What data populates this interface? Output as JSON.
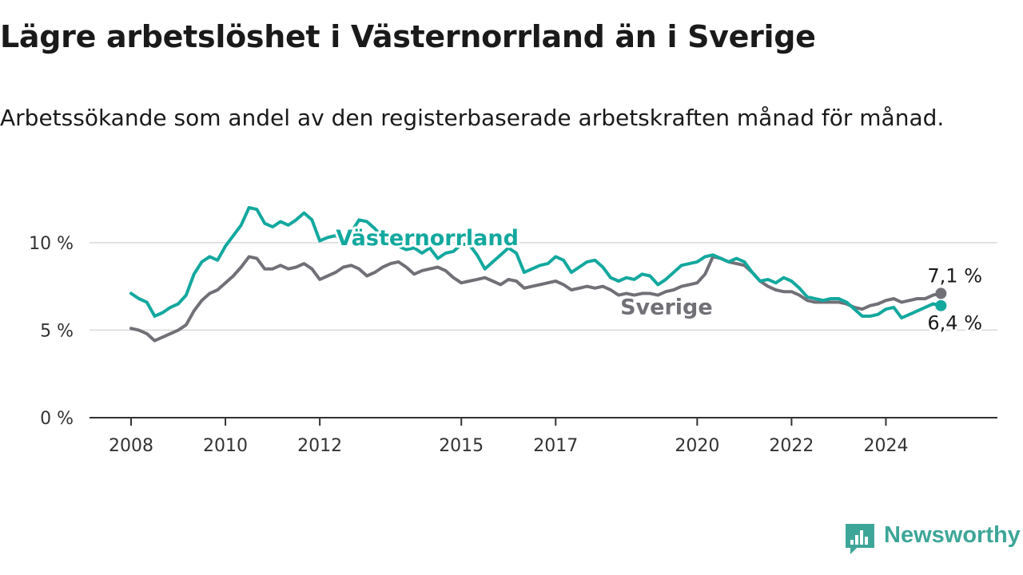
{
  "title": "Lägre arbetslöshet i Västernorrland än i Sverige",
  "subtitle": "Arbetssökande som andel av den registerbaserade arbetskraften månad för månad.",
  "brand": {
    "name": "Newsworthy",
    "icon": "newsworthy-logo-icon",
    "color": "#3ea698"
  },
  "colors": {
    "vasternorrland": "#13a89e",
    "sverige": "#727077",
    "axis": "#333333",
    "grid": "#d9d9d9"
  },
  "chart_data": {
    "type": "line",
    "title": "Lägre arbetslöshet i Västernorrland än i Sverige",
    "subtitle": "Arbetssökande som andel av den registerbaserade arbetskraften månad för månad.",
    "ylim": [
      0,
      12
    ],
    "yticks": [
      0,
      5,
      10
    ],
    "ytick_labels": [
      "0 %",
      "5 %",
      "10 %"
    ],
    "xlim": [
      "2008-01",
      "2025-07"
    ],
    "xticks": [
      "2008-01",
      "2010-01",
      "2012-01",
      "2015-01",
      "2017-01",
      "2020-01",
      "2022-01",
      "2024-01"
    ],
    "xtick_labels": [
      "2008",
      "2010",
      "2012",
      "2015",
      "2017",
      "2020",
      "2022",
      "2024"
    ],
    "grid": true,
    "legend": "direct labels on lines",
    "series": [
      {
        "name": "Västernorrland",
        "label": "Västernorrland",
        "end_label": "6,4 %",
        "points": [
          [
            "2008-01",
            7.1
          ],
          [
            "2008-03",
            6.8
          ],
          [
            "2008-05",
            6.6
          ],
          [
            "2008-07",
            5.8
          ],
          [
            "2008-09",
            6.0
          ],
          [
            "2008-11",
            6.3
          ],
          [
            "2009-01",
            6.5
          ],
          [
            "2009-03",
            7.0
          ],
          [
            "2009-05",
            8.2
          ],
          [
            "2009-07",
            8.9
          ],
          [
            "2009-09",
            9.2
          ],
          [
            "2009-11",
            9.0
          ],
          [
            "2010-01",
            9.8
          ],
          [
            "2010-03",
            10.4
          ],
          [
            "2010-05",
            11.0
          ],
          [
            "2010-07",
            12.0
          ],
          [
            "2010-09",
            11.9
          ],
          [
            "2010-11",
            11.1
          ],
          [
            "2011-01",
            10.9
          ],
          [
            "2011-03",
            11.2
          ],
          [
            "2011-05",
            11.0
          ],
          [
            "2011-07",
            11.3
          ],
          [
            "2011-09",
            11.7
          ],
          [
            "2011-11",
            11.3
          ],
          [
            "2012-01",
            10.1
          ],
          [
            "2012-03",
            10.3
          ],
          [
            "2012-05",
            10.4
          ],
          [
            "2012-07",
            10.1
          ],
          [
            "2012-09",
            10.6
          ],
          [
            "2012-11",
            11.3
          ],
          [
            "2013-01",
            11.2
          ],
          [
            "2013-03",
            10.8
          ],
          [
            "2013-05",
            10.3
          ],
          [
            "2013-07",
            10.0
          ],
          [
            "2013-09",
            9.8
          ],
          [
            "2013-11",
            9.6
          ],
          [
            "2014-01",
            9.7
          ],
          [
            "2014-03",
            9.4
          ],
          [
            "2014-05",
            9.7
          ],
          [
            "2014-07",
            9.1
          ],
          [
            "2014-09",
            9.4
          ],
          [
            "2014-11",
            9.5
          ],
          [
            "2015-01",
            9.9
          ],
          [
            "2015-03",
            9.9
          ],
          [
            "2015-05",
            9.3
          ],
          [
            "2015-07",
            8.5
          ],
          [
            "2015-09",
            8.9
          ],
          [
            "2015-11",
            9.3
          ],
          [
            "2016-01",
            9.7
          ],
          [
            "2016-03",
            9.4
          ],
          [
            "2016-05",
            8.3
          ],
          [
            "2016-07",
            8.5
          ],
          [
            "2016-09",
            8.7
          ],
          [
            "2016-11",
            8.8
          ],
          [
            "2017-01",
            9.2
          ],
          [
            "2017-03",
            9.0
          ],
          [
            "2017-05",
            8.3
          ],
          [
            "2017-07",
            8.6
          ],
          [
            "2017-09",
            8.9
          ],
          [
            "2017-11",
            9.0
          ],
          [
            "2018-01",
            8.6
          ],
          [
            "2018-03",
            8.0
          ],
          [
            "2018-05",
            7.8
          ],
          [
            "2018-07",
            8.0
          ],
          [
            "2018-09",
            7.9
          ],
          [
            "2018-11",
            8.2
          ],
          [
            "2019-01",
            8.1
          ],
          [
            "2019-03",
            7.6
          ],
          [
            "2019-05",
            7.9
          ],
          [
            "2019-07",
            8.3
          ],
          [
            "2019-09",
            8.7
          ],
          [
            "2019-11",
            8.8
          ],
          [
            "2020-01",
            8.9
          ],
          [
            "2020-03",
            9.2
          ],
          [
            "2020-05",
            9.3
          ],
          [
            "2020-07",
            9.1
          ],
          [
            "2020-09",
            8.9
          ],
          [
            "2020-11",
            9.1
          ],
          [
            "2021-01",
            8.9
          ],
          [
            "2021-03",
            8.3
          ],
          [
            "2021-05",
            7.8
          ],
          [
            "2021-07",
            7.9
          ],
          [
            "2021-09",
            7.7
          ],
          [
            "2021-11",
            8.0
          ],
          [
            "2022-01",
            7.8
          ],
          [
            "2022-03",
            7.4
          ],
          [
            "2022-05",
            6.9
          ],
          [
            "2022-07",
            6.8
          ],
          [
            "2022-09",
            6.7
          ],
          [
            "2022-11",
            6.8
          ],
          [
            "2023-01",
            6.8
          ],
          [
            "2023-03",
            6.6
          ],
          [
            "2023-05",
            6.2
          ],
          [
            "2023-07",
            5.8
          ],
          [
            "2023-09",
            5.8
          ],
          [
            "2023-11",
            5.9
          ],
          [
            "2024-01",
            6.2
          ],
          [
            "2024-03",
            6.3
          ],
          [
            "2024-05",
            5.7
          ],
          [
            "2024-07",
            5.9
          ],
          [
            "2024-09",
            6.1
          ],
          [
            "2024-11",
            6.3
          ],
          [
            "2025-01",
            6.5
          ],
          [
            "2025-03",
            6.4
          ]
        ]
      },
      {
        "name": "Sverige",
        "label": "Sverige",
        "end_label": "7,1 %",
        "points": [
          [
            "2008-01",
            5.1
          ],
          [
            "2008-03",
            5.0
          ],
          [
            "2008-05",
            4.8
          ],
          [
            "2008-07",
            4.4
          ],
          [
            "2008-09",
            4.6
          ],
          [
            "2008-11",
            4.8
          ],
          [
            "2009-01",
            5.0
          ],
          [
            "2009-03",
            5.3
          ],
          [
            "2009-05",
            6.1
          ],
          [
            "2009-07",
            6.7
          ],
          [
            "2009-09",
            7.1
          ],
          [
            "2009-11",
            7.3
          ],
          [
            "2010-01",
            7.7
          ],
          [
            "2010-03",
            8.1
          ],
          [
            "2010-05",
            8.6
          ],
          [
            "2010-07",
            9.2
          ],
          [
            "2010-09",
            9.1
          ],
          [
            "2010-11",
            8.5
          ],
          [
            "2011-01",
            8.5
          ],
          [
            "2011-03",
            8.7
          ],
          [
            "2011-05",
            8.5
          ],
          [
            "2011-07",
            8.6
          ],
          [
            "2011-09",
            8.8
          ],
          [
            "2011-11",
            8.5
          ],
          [
            "2012-01",
            7.9
          ],
          [
            "2012-03",
            8.1
          ],
          [
            "2012-05",
            8.3
          ],
          [
            "2012-07",
            8.6
          ],
          [
            "2012-09",
            8.7
          ],
          [
            "2012-11",
            8.5
          ],
          [
            "2013-01",
            8.1
          ],
          [
            "2013-03",
            8.3
          ],
          [
            "2013-05",
            8.6
          ],
          [
            "2013-07",
            8.8
          ],
          [
            "2013-09",
            8.9
          ],
          [
            "2013-11",
            8.6
          ],
          [
            "2014-01",
            8.2
          ],
          [
            "2014-03",
            8.4
          ],
          [
            "2014-05",
            8.5
          ],
          [
            "2014-07",
            8.6
          ],
          [
            "2014-09",
            8.4
          ],
          [
            "2014-11",
            8.0
          ],
          [
            "2015-01",
            7.7
          ],
          [
            "2015-03",
            7.8
          ],
          [
            "2015-05",
            7.9
          ],
          [
            "2015-07",
            8.0
          ],
          [
            "2015-09",
            7.8
          ],
          [
            "2015-11",
            7.6
          ],
          [
            "2016-01",
            7.9
          ],
          [
            "2016-03",
            7.8
          ],
          [
            "2016-05",
            7.4
          ],
          [
            "2016-07",
            7.5
          ],
          [
            "2016-09",
            7.6
          ],
          [
            "2016-11",
            7.7
          ],
          [
            "2017-01",
            7.8
          ],
          [
            "2017-03",
            7.6
          ],
          [
            "2017-05",
            7.3
          ],
          [
            "2017-07",
            7.4
          ],
          [
            "2017-09",
            7.5
          ],
          [
            "2017-11",
            7.4
          ],
          [
            "2018-01",
            7.5
          ],
          [
            "2018-03",
            7.3
          ],
          [
            "2018-05",
            7.0
          ],
          [
            "2018-07",
            7.1
          ],
          [
            "2018-09",
            7.0
          ],
          [
            "2018-11",
            7.1
          ],
          [
            "2019-01",
            7.1
          ],
          [
            "2019-03",
            7.0
          ],
          [
            "2019-05",
            7.2
          ],
          [
            "2019-07",
            7.3
          ],
          [
            "2019-09",
            7.5
          ],
          [
            "2019-11",
            7.6
          ],
          [
            "2020-01",
            7.7
          ],
          [
            "2020-03",
            8.2
          ],
          [
            "2020-05",
            9.2
          ],
          [
            "2020-07",
            9.1
          ],
          [
            "2020-09",
            8.9
          ],
          [
            "2020-11",
            8.8
          ],
          [
            "2021-01",
            8.7
          ],
          [
            "2021-03",
            8.3
          ],
          [
            "2021-05",
            7.8
          ],
          [
            "2021-07",
            7.5
          ],
          [
            "2021-09",
            7.3
          ],
          [
            "2021-11",
            7.2
          ],
          [
            "2022-01",
            7.2
          ],
          [
            "2022-03",
            7.0
          ],
          [
            "2022-05",
            6.7
          ],
          [
            "2022-07",
            6.6
          ],
          [
            "2022-09",
            6.6
          ],
          [
            "2022-11",
            6.6
          ],
          [
            "2023-01",
            6.6
          ],
          [
            "2023-03",
            6.5
          ],
          [
            "2023-05",
            6.3
          ],
          [
            "2023-07",
            6.2
          ],
          [
            "2023-09",
            6.4
          ],
          [
            "2023-11",
            6.5
          ],
          [
            "2024-01",
            6.7
          ],
          [
            "2024-03",
            6.8
          ],
          [
            "2024-05",
            6.6
          ],
          [
            "2024-07",
            6.7
          ],
          [
            "2024-09",
            6.8
          ],
          [
            "2024-11",
            6.8
          ],
          [
            "2025-01",
            7.0
          ],
          [
            "2025-03",
            7.1
          ]
        ]
      }
    ]
  }
}
